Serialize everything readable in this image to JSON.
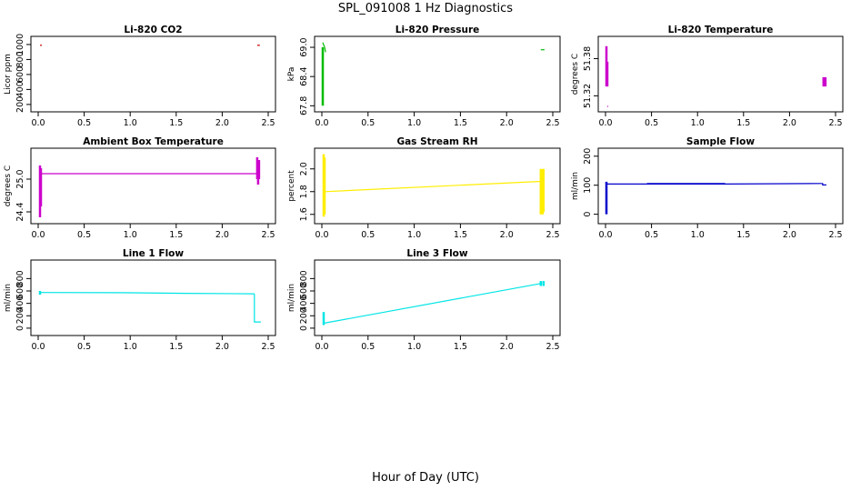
{
  "title": "SPL_091008  1 Hz Diagnostics",
  "xlabel": "Hour of Day (UTC)",
  "chart_data": [
    {
      "type": "line",
      "title": "Li-820 CO2",
      "ylabel": "Licor ppm",
      "color": "#cc0000",
      "xlim": [
        0,
        2.5
      ],
      "ylim": [
        150,
        1060
      ],
      "xticks": [
        "0.0",
        "0.5",
        "1.0",
        "1.5",
        "2.0",
        "2.5"
      ],
      "yticks": [
        "200",
        "400",
        "600",
        "800",
        "1000"
      ],
      "segments": [
        {
          "x": [
            0.02,
            0.04
          ],
          "y": [
            990,
            990
          ]
        },
        {
          "x": [
            2.38,
            2.41
          ],
          "y": [
            990,
            990
          ]
        }
      ]
    },
    {
      "type": "line",
      "title": "Li-820 Pressure",
      "ylabel": "kPa",
      "color": "#00bb00",
      "xlim": [
        0,
        2.5
      ],
      "ylim": [
        67.75,
        69.15
      ],
      "xticks": [
        "0.0",
        "0.5",
        "1.0",
        "1.5",
        "2.0",
        "2.5"
      ],
      "yticks": [
        "67.8",
        "68.4",
        "69.0"
      ],
      "segments": [
        {
          "x": [
            0.01,
            0.01
          ],
          "y": [
            67.8,
            69.0
          ]
        },
        {
          "x": [
            0.01,
            0.03,
            0.04
          ],
          "y": [
            69.1,
            69.0,
            68.9
          ]
        },
        {
          "x": [
            2.37,
            2.41
          ],
          "y": [
            68.95,
            68.95
          ]
        }
      ]
    },
    {
      "type": "line",
      "title": "Li-820 Temperature",
      "ylabel": "degrees C",
      "color": "#cc00cc",
      "xlim": [
        0,
        2.5
      ],
      "ylim": [
        51.3,
        51.41
      ],
      "xticks": [
        "0.0",
        "0.5",
        "1.0",
        "1.5",
        "2.0",
        "2.5"
      ],
      "yticks": [
        "51.32",
        "51.38"
      ],
      "segments": [
        {
          "x": [
            0.01,
            0.01
          ],
          "y": [
            51.4,
            51.335
          ]
        },
        {
          "x": [
            0.02,
            0.02
          ],
          "y": [
            51.375,
            51.335
          ]
        },
        {
          "x": [
            0.02,
            0.03
          ],
          "y": [
            51.303,
            51.303
          ]
        },
        {
          "x": [
            2.37,
            2.37
          ],
          "y": [
            51.35,
            51.335
          ]
        },
        {
          "x": [
            2.39,
            2.39
          ],
          "y": [
            51.35,
            51.335
          ]
        }
      ]
    },
    {
      "type": "line",
      "title": "Ambient Box Temperature",
      "ylabel": "degrees C",
      "color": "#cc00cc",
      "xlim": [
        0,
        2.5
      ],
      "ylim": [
        24.25,
        25.5
      ],
      "xticks": [
        "0.0",
        "0.5",
        "1.0",
        "1.5",
        "2.0",
        "2.5"
      ],
      "yticks": [
        "24.4",
        "25.0"
      ],
      "segments": [
        {
          "x": [
            0.03,
            2.38
          ],
          "y": [
            25.1,
            25.1
          ]
        },
        {
          "x": [
            0.02,
            0.02
          ],
          "y": [
            24.3,
            25.25
          ]
        },
        {
          "x": [
            0.03,
            0.03
          ],
          "y": [
            24.5,
            25.2
          ]
        },
        {
          "x": [
            2.38,
            2.38
          ],
          "y": [
            25.0,
            25.4
          ]
        },
        {
          "x": [
            2.39,
            2.39
          ],
          "y": [
            24.9,
            25.3
          ]
        },
        {
          "x": [
            2.4,
            2.4
          ],
          "y": [
            25.0,
            25.35
          ]
        }
      ]
    },
    {
      "type": "line",
      "title": "Gas Stream RH",
      "ylabel": "percent",
      "color": "#ffee00",
      "xlim": [
        0,
        2.5
      ],
      "ylim": [
        1.55,
        2.15
      ],
      "xticks": [
        "0.0",
        "0.5",
        "1.0",
        "1.5",
        "2.0",
        "2.5"
      ],
      "yticks": [
        "1.6",
        "1.8",
        "2.0"
      ],
      "segments": [
        {
          "x": [
            0.03,
            2.37
          ],
          "y": [
            1.8,
            1.89
          ]
        },
        {
          "x": [
            0.02,
            0.02
          ],
          "y": [
            1.58,
            2.13
          ]
        },
        {
          "x": [
            0.03,
            0.03
          ],
          "y": [
            1.6,
            2.1
          ]
        },
        {
          "x": [
            2.37,
            2.37
          ],
          "y": [
            1.6,
            2.0
          ]
        },
        {
          "x": [
            2.39,
            2.39
          ],
          "y": [
            1.6,
            2.0
          ]
        },
        {
          "x": [
            2.4,
            2.4
          ],
          "y": [
            1.62,
            2.0
          ]
        }
      ]
    },
    {
      "type": "line",
      "title": "Sample Flow",
      "ylabel": "ml/min",
      "color": "#0000cc",
      "xlim": [
        0,
        2.5
      ],
      "ylim": [
        -20,
        215
      ],
      "xticks": [
        "0.0",
        "0.5",
        "1.0",
        "1.5",
        "2.0",
        "2.5"
      ],
      "yticks": [
        "0",
        "100",
        "200"
      ],
      "segments": [
        {
          "x": [
            0.01,
            0.01
          ],
          "y": [
            0,
            112
          ]
        },
        {
          "x": [
            0.01,
            0.45,
            1.3,
            2.35
          ],
          "y": [
            104,
            104,
            104,
            106
          ]
        },
        {
          "x": [
            0.45,
            1.3
          ],
          "y": [
            106,
            106
          ]
        },
        {
          "x": [
            2.35,
            2.36,
            2.36,
            2.4
          ],
          "y": [
            106,
            106,
            101,
            101
          ]
        }
      ]
    },
    {
      "type": "line",
      "title": "Line 1 Flow",
      "ylabel": "ml/min",
      "color": "#00e5e5",
      "xlim": [
        0,
        2.5
      ],
      "ylim": [
        -60,
        1040
      ],
      "xticks": [
        "0.0",
        "0.5",
        "1.0",
        "1.5",
        "2.0",
        "2.5"
      ],
      "yticks": [
        "0",
        "200",
        "400",
        "600",
        "800"
      ],
      "segments": [
        {
          "x": [
            0.02,
            0.02
          ],
          "y": [
            540,
            600
          ]
        },
        {
          "x": [
            0.02,
            0.9,
            1.6,
            2.35
          ],
          "y": [
            575,
            572,
            562,
            555
          ]
        },
        {
          "x": [
            2.35,
            2.35,
            2.42
          ],
          "y": [
            555,
            100,
            100
          ]
        }
      ]
    },
    {
      "type": "line",
      "title": "Line 3 Flow",
      "ylabel": "ml/min",
      "color": "#00e5e5",
      "xlim": [
        0,
        2.5
      ],
      "ylim": [
        -60,
        1040
      ],
      "xticks": [
        "0.0",
        "0.5",
        "1.0",
        "1.5",
        "2.0",
        "2.5"
      ],
      "yticks": [
        "0",
        "200",
        "400",
        "600",
        "800"
      ],
      "segments": [
        {
          "x": [
            0.02,
            0.02
          ],
          "y": [
            50,
            260
          ]
        },
        {
          "x": [
            0.02,
            2.37
          ],
          "y": [
            80,
            720
          ]
        },
        {
          "x": [
            2.37,
            2.37
          ],
          "y": [
            680,
            760
          ]
        },
        {
          "x": [
            2.4,
            2.4
          ],
          "y": [
            680,
            760
          ]
        }
      ]
    }
  ]
}
